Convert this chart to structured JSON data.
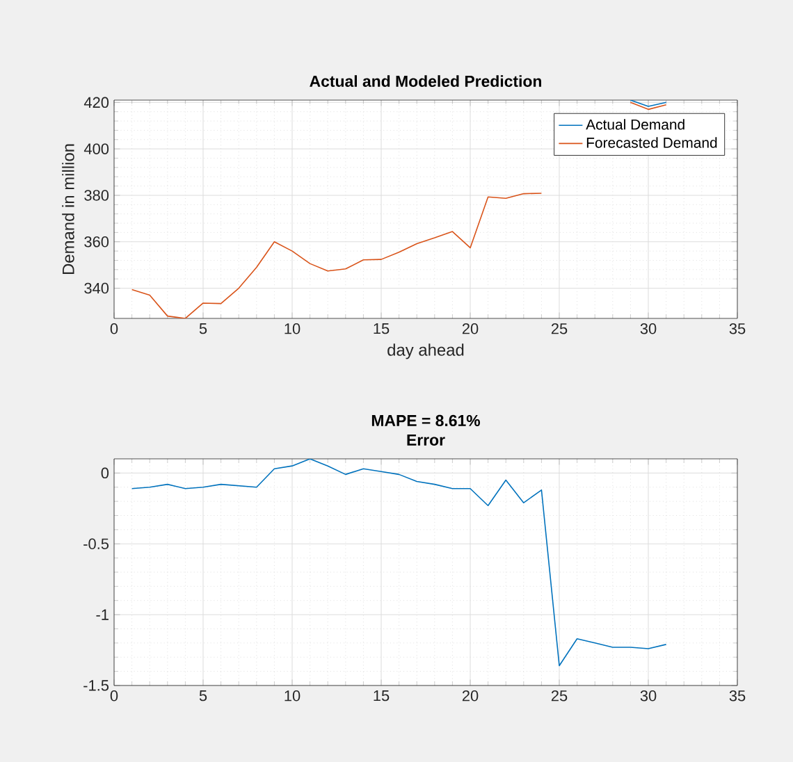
{
  "chart_data": [
    {
      "type": "line",
      "title": "Actual and Modeled Prediction",
      "xlabel": "day ahead",
      "ylabel": "Demand in million",
      "x": [
        1,
        2,
        3,
        4,
        5,
        6,
        7,
        8,
        9,
        10,
        11,
        12,
        13,
        14,
        15,
        16,
        17,
        18,
        19,
        20,
        21,
        22,
        23,
        24,
        25,
        26,
        27,
        28,
        29,
        30,
        31
      ],
      "series": [
        {
          "name": "Actual Demand",
          "color": "#0072bd",
          "values": [
            null,
            null,
            null,
            null,
            null,
            null,
            null,
            null,
            null,
            null,
            null,
            null,
            null,
            null,
            null,
            null,
            null,
            null,
            null,
            null,
            null,
            null,
            null,
            null,
            null,
            null,
            null,
            null,
            421,
            418.3,
            420
          ]
        },
        {
          "name": "Forecasted Demand",
          "color": "#d95319",
          "values": [
            339.4,
            337,
            328,
            327,
            333.6,
            333.4,
            340,
            349,
            360,
            356,
            350.6,
            347.4,
            348.3,
            352.2,
            352.4,
            355.5,
            359.2,
            361.7,
            364.4,
            357.4,
            379.3,
            378.7,
            380.7,
            380.9,
            null,
            null,
            null,
            null,
            420,
            417,
            419
          ]
        }
      ],
      "xlim": [
        0,
        35
      ],
      "xticks": [
        0,
        5,
        10,
        15,
        20,
        25,
        30,
        35
      ],
      "ylim": [
        327,
        421
      ],
      "yticks": [
        340,
        360,
        380,
        400,
        420
      ],
      "grid": true,
      "legend": "top right"
    },
    {
      "type": "line",
      "title": "MAPE = 8.61%",
      "subtitle": "Error",
      "x": [
        1,
        2,
        3,
        4,
        5,
        6,
        7,
        8,
        9,
        10,
        11,
        12,
        13,
        14,
        15,
        16,
        17,
        18,
        19,
        20,
        21,
        22,
        23,
        24,
        25,
        26,
        27,
        28,
        29,
        30,
        31
      ],
      "series": [
        {
          "color": "#0072bd",
          "values": [
            -0.11,
            -0.1,
            -0.08,
            -0.11,
            -0.1,
            -0.08,
            -0.09,
            -0.1,
            0.03,
            0.05,
            0.1,
            0.05,
            -0.01,
            0.03,
            0.01,
            -0.01,
            -0.06,
            -0.08,
            -0.11,
            -0.11,
            -0.23,
            -0.05,
            -0.21,
            -0.12,
            -1.36,
            -1.17,
            -1.2,
            -1.23,
            -1.23,
            -1.24,
            -1.21
          ]
        }
      ],
      "xlim": [
        0,
        35
      ],
      "xticks": [
        0,
        5,
        10,
        15,
        20,
        25,
        30,
        35
      ],
      "ylim": [
        -1.5,
        0.1
      ],
      "yticks": [
        -1.5,
        -1,
        -0.5,
        0
      ],
      "grid": true
    }
  ]
}
